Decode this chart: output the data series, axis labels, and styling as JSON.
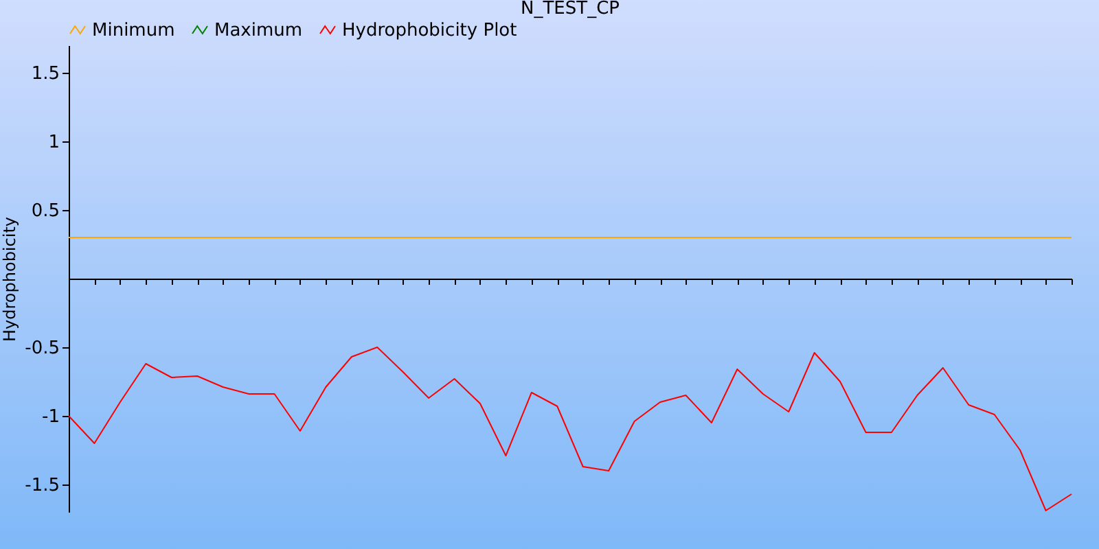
{
  "chart_data": {
    "type": "line",
    "title": "N_TEST_CP",
    "ylabel": "Hydrophobicity",
    "categories": [
      null,
      null,
      null,
      null,
      null,
      null,
      null,
      null,
      null,
      null,
      null,
      null,
      null,
      null,
      null,
      null,
      null,
      null,
      null,
      null,
      null,
      null,
      null,
      null,
      null,
      null,
      null,
      null,
      null,
      null,
      null,
      null,
      null,
      null,
      null,
      null,
      null,
      null,
      null,
      null
    ],
    "ylim": [
      -1.7,
      1.7
    ],
    "yticks": [
      -1.5,
      -1,
      -0.5,
      0.5,
      1,
      1.5
    ],
    "grid": false,
    "legend": "top",
    "marker": "none",
    "line_style": "solid",
    "tick_labels": "y",
    "series": [
      {
        "name": "Minimum",
        "color": "#ffa500",
        "values": [
          0.3,
          0.3,
          0.3,
          0.3,
          0.3,
          0.3,
          0.3,
          0.3,
          0.3,
          0.3,
          0.3,
          0.3,
          0.3,
          0.3,
          0.3,
          0.3,
          0.3,
          0.3,
          0.3,
          0.3,
          0.3,
          0.3,
          0.3,
          0.3,
          0.3,
          0.3,
          0.3,
          0.3,
          0.3,
          0.3,
          0.3,
          0.3,
          0.3,
          0.3,
          0.3,
          0.3,
          0.3,
          0.3,
          0.3,
          0.3
        ]
      },
      {
        "name": "Maximum",
        "color": "#008000",
        "values": [
          null,
          null,
          null,
          null,
          null,
          null,
          null,
          null,
          null,
          null,
          null,
          null,
          null,
          null,
          null,
          null,
          null,
          null,
          null,
          null,
          null,
          null,
          null,
          null,
          null,
          null,
          null,
          null,
          null,
          null,
          null,
          null,
          null,
          null,
          null,
          null,
          null,
          null,
          null,
          null
        ]
      },
      {
        "name": "Hydrophobicity Plot",
        "color": "#ff0000",
        "values": [
          -1.0,
          -1.2,
          -0.9,
          -0.62,
          -0.72,
          -0.71,
          -0.79,
          -0.84,
          -0.84,
          -1.11,
          -0.79,
          -0.57,
          -0.5,
          -0.68,
          -0.87,
          -0.73,
          -0.91,
          -1.29,
          -0.83,
          -0.93,
          -1.37,
          -1.4,
          -1.04,
          -0.9,
          -0.85,
          -1.05,
          -0.66,
          -0.84,
          -0.97,
          -0.54,
          -0.75,
          -1.12,
          -1.12,
          -0.85,
          -0.65,
          -0.92,
          -0.99,
          -1.25,
          -1.69,
          -1.57
        ]
      }
    ]
  }
}
